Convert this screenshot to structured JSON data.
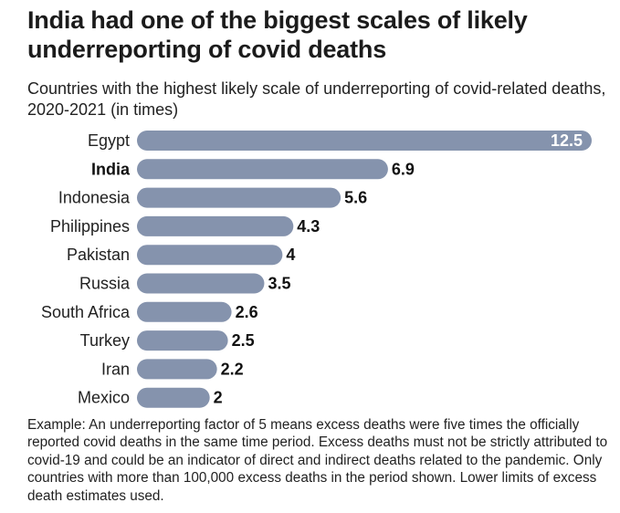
{
  "title": "India had one of the biggest scales of likely underreporting of covid deaths",
  "subtitle": "Countries with the highest likely scale of underreporting of covid-related deaths, 2020-2021 (in times)",
  "note": "Example: An underreporting factor of 5 means excess deaths were five times the officially reported covid deaths in the same time period. Excess deaths must not be strictly attributed to covid-19 and could be an indicator of direct and indirect deaths related to the pandemic. Only countries with more than 100,000 excess deaths in the period shown. Lower limits of excess death estimates used.",
  "colors": {
    "bar": "#8593ad",
    "highlight_label": "#111111"
  },
  "chart_data": {
    "type": "bar",
    "orientation": "horizontal",
    "title": "India had one of the biggest scales of likely underreporting of covid deaths",
    "subtitle": "Countries with the highest likely scale of underreporting of covid-related deaths, 2020-2021 (in times)",
    "categories": [
      "Egypt",
      "India",
      "Indonesia",
      "Philippines",
      "Pakistan",
      "Russia",
      "South Africa",
      "Turkey",
      "Iran",
      "Mexico"
    ],
    "values": [
      12.5,
      6.9,
      5.6,
      4.3,
      4,
      3.5,
      2.6,
      2.5,
      2.2,
      2
    ],
    "value_labels": [
      "12.5",
      "6.9",
      "5.6",
      "4.3",
      "4",
      "3.5",
      "2.6",
      "2.5",
      "2.2",
      "2"
    ],
    "highlight": "India",
    "xlim": [
      0,
      12.5
    ],
    "grid": false,
    "legend": "none"
  }
}
